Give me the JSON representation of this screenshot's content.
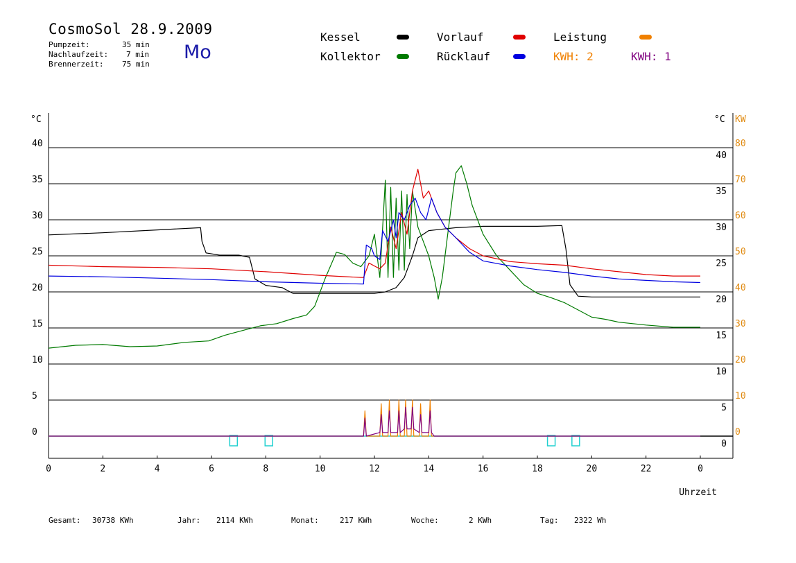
{
  "header": {
    "title": "CosmoSol 28.9.2009",
    "weekday": "Mo",
    "pump_label": "Pumpzeit:",
    "pump_value": "35 min",
    "after_label": "Nachlaufzeit:",
    "after_value": "7 min",
    "burner_label": "Brennerzeit:",
    "burner_value": "75 min"
  },
  "legend": {
    "kessel": "Kessel",
    "kollektor": "Kollektor",
    "vorlauf": "Vorlauf",
    "ruecklauf": "Rücklauf",
    "leistung": "Leistung",
    "kwh_a": "KWH: 2",
    "kwh_b": "KWH: 1"
  },
  "colors": {
    "kessel": "#000000",
    "kollektor": "#007a00",
    "vorlauf": "#e00000",
    "ruecklauf": "#0000e0",
    "leistung": "#f08000",
    "kwh_b": "#800080",
    "base": "#20d0d0"
  },
  "axes": {
    "left_unit": "°C",
    "right_unit": "°C",
    "right2_unit": "KW",
    "x_label": "Uhrzeit"
  },
  "footer": {
    "gesamt_label": "Gesamt:",
    "gesamt_value": "30738 KWh",
    "jahr_label": "Jahr:",
    "jahr_value": "2114 KWh",
    "monat_label": "Monat:",
    "monat_value": "217 KWh",
    "woche_label": "Woche:",
    "woche_value": "2 KWh",
    "tag_label": "Tag:",
    "tag_value": "2322 Wh"
  },
  "chart_data": {
    "type": "line",
    "title": "CosmoSol 28.9.2009",
    "xlabel": "Uhrzeit",
    "ylabel": "°C",
    "xlim": [
      0,
      24
    ],
    "ylim": [
      0,
      45
    ],
    "y2lim": [
      0,
      90
    ],
    "grid": true,
    "x_ticks": [
      "0",
      "2",
      "4",
      "6",
      "8",
      "10",
      "12",
      "14",
      "16",
      "18",
      "20",
      "22",
      "0"
    ],
    "y_ticks": [
      "0",
      "5",
      "10",
      "15",
      "20",
      "25",
      "30",
      "35",
      "40"
    ],
    "y2_ticks": [
      "0",
      "10",
      "20",
      "30",
      "40",
      "50",
      "60",
      "70",
      "80"
    ],
    "series": [
      {
        "name": "Kessel",
        "color": "#000000",
        "points": [
          [
            0,
            27.9
          ],
          [
            2,
            28.2
          ],
          [
            4,
            28.6
          ],
          [
            5.6,
            28.9
          ],
          [
            5.65,
            27
          ],
          [
            5.8,
            25.4
          ],
          [
            6.3,
            25.1
          ],
          [
            7,
            25.1
          ],
          [
            7.4,
            24.8
          ],
          [
            7.6,
            21.8
          ],
          [
            8,
            20.9
          ],
          [
            8.6,
            20.6
          ],
          [
            9,
            19.8
          ],
          [
            10,
            19.8
          ],
          [
            11,
            19.8
          ],
          [
            11.6,
            19.8
          ],
          [
            12,
            19.8
          ],
          [
            12.4,
            20
          ],
          [
            12.8,
            20.6
          ],
          [
            13.1,
            22
          ],
          [
            13.4,
            25
          ],
          [
            13.6,
            27.5
          ],
          [
            14,
            28.5
          ],
          [
            15,
            28.9
          ],
          [
            16,
            29.1
          ],
          [
            17,
            29.1
          ],
          [
            18,
            29.1
          ],
          [
            18.9,
            29.2
          ],
          [
            19.05,
            26
          ],
          [
            19.2,
            21
          ],
          [
            19.5,
            19.4
          ],
          [
            20,
            19.3
          ],
          [
            22,
            19.3
          ],
          [
            24,
            19.3
          ]
        ]
      },
      {
        "name": "Kollektor",
        "color": "#007a00",
        "points": [
          [
            0,
            12.2
          ],
          [
            1,
            12.6
          ],
          [
            2,
            12.7
          ],
          [
            3,
            12.4
          ],
          [
            4,
            12.5
          ],
          [
            5,
            13
          ],
          [
            5.9,
            13.2
          ],
          [
            6.5,
            14
          ],
          [
            7,
            14.5
          ],
          [
            7.8,
            15.3
          ],
          [
            8.4,
            15.6
          ],
          [
            9,
            16.3
          ],
          [
            9.5,
            16.8
          ],
          [
            9.8,
            18
          ],
          [
            10.2,
            22
          ],
          [
            10.6,
            25.5
          ],
          [
            10.9,
            25.2
          ],
          [
            11.2,
            24
          ],
          [
            11.5,
            23.5
          ],
          [
            11.8,
            25
          ],
          [
            12,
            28
          ],
          [
            12.2,
            22
          ],
          [
            12.4,
            35.5
          ],
          [
            12.5,
            22
          ],
          [
            12.6,
            34.5
          ],
          [
            12.7,
            22
          ],
          [
            12.8,
            33
          ],
          [
            12.9,
            23
          ],
          [
            13,
            34
          ],
          [
            13.1,
            23
          ],
          [
            13.2,
            33.5
          ],
          [
            13.3,
            26
          ],
          [
            13.4,
            34
          ],
          [
            13.6,
            29
          ],
          [
            13.8,
            27
          ],
          [
            14,
            25
          ],
          [
            14.2,
            22
          ],
          [
            14.35,
            19
          ],
          [
            14.5,
            22
          ],
          [
            14.7,
            28
          ],
          [
            14.9,
            34
          ],
          [
            15,
            36.5
          ],
          [
            15.2,
            37.5
          ],
          [
            15.4,
            35
          ],
          [
            15.6,
            32
          ],
          [
            15.8,
            30
          ],
          [
            16,
            28
          ],
          [
            16.5,
            25
          ],
          [
            17,
            23
          ],
          [
            17.5,
            21
          ],
          [
            18,
            19.8
          ],
          [
            18.5,
            19.2
          ],
          [
            19,
            18.5
          ],
          [
            19.5,
            17.5
          ],
          [
            20,
            16.5
          ],
          [
            20.5,
            16.2
          ],
          [
            21,
            15.8
          ],
          [
            22,
            15.4
          ],
          [
            23,
            15.1
          ],
          [
            24,
            15.1
          ]
        ]
      },
      {
        "name": "Vorlauf",
        "color": "#e00000",
        "points": [
          [
            0,
            23.7
          ],
          [
            2,
            23.5
          ],
          [
            4,
            23.4
          ],
          [
            6,
            23.2
          ],
          [
            8,
            22.8
          ],
          [
            10,
            22.3
          ],
          [
            11.5,
            22
          ],
          [
            11.6,
            22
          ],
          [
            11.8,
            24
          ],
          [
            12,
            23.6
          ],
          [
            12.2,
            23.2
          ],
          [
            12.4,
            24
          ],
          [
            12.6,
            29
          ],
          [
            12.8,
            26
          ],
          [
            13,
            31
          ],
          [
            13.2,
            28
          ],
          [
            13.4,
            34
          ],
          [
            13.6,
            37
          ],
          [
            13.8,
            33
          ],
          [
            14,
            34
          ],
          [
            14.3,
            31
          ],
          [
            14.6,
            29
          ],
          [
            15,
            27.5
          ],
          [
            15.5,
            26
          ],
          [
            16,
            25
          ],
          [
            17,
            24.2
          ],
          [
            18,
            23.9
          ],
          [
            19,
            23.7
          ],
          [
            20,
            23.2
          ],
          [
            21,
            22.8
          ],
          [
            22,
            22.4
          ],
          [
            23,
            22.2
          ],
          [
            24,
            22.2
          ]
        ]
      },
      {
        "name": "Rücklauf",
        "color": "#0000e0",
        "points": [
          [
            0,
            22.2
          ],
          [
            2,
            22.1
          ],
          [
            4,
            21.9
          ],
          [
            6,
            21.7
          ],
          [
            8,
            21.4
          ],
          [
            10,
            21.2
          ],
          [
            11.6,
            21.1
          ],
          [
            11.7,
            26.5
          ],
          [
            11.9,
            26
          ],
          [
            12,
            25
          ],
          [
            12.2,
            24.5
          ],
          [
            12.3,
            28.5
          ],
          [
            12.5,
            27
          ],
          [
            12.7,
            30
          ],
          [
            12.8,
            27.5
          ],
          [
            12.9,
            31
          ],
          [
            13.1,
            30
          ],
          [
            13.3,
            32
          ],
          [
            13.5,
            33
          ],
          [
            13.7,
            31
          ],
          [
            13.9,
            30
          ],
          [
            14.1,
            33
          ],
          [
            14.3,
            31
          ],
          [
            14.6,
            29
          ],
          [
            15,
            27.5
          ],
          [
            15.5,
            25.5
          ],
          [
            16,
            24.3
          ],
          [
            17,
            23.6
          ],
          [
            18,
            23.1
          ],
          [
            19,
            22.7
          ],
          [
            20,
            22.2
          ],
          [
            21,
            21.8
          ],
          [
            22,
            21.6
          ],
          [
            23,
            21.4
          ],
          [
            24,
            21.3
          ]
        ]
      },
      {
        "name": "Leistung",
        "color": "#f08000",
        "axis": "y2",
        "points": [
          [
            0,
            0
          ],
          [
            11.6,
            0
          ],
          [
            11.65,
            7
          ],
          [
            11.7,
            0
          ],
          [
            12.2,
            0
          ],
          [
            12.25,
            9
          ],
          [
            12.3,
            0
          ],
          [
            12.5,
            0
          ],
          [
            12.55,
            10
          ],
          [
            12.6,
            0
          ],
          [
            12.85,
            0
          ],
          [
            12.9,
            10
          ],
          [
            12.95,
            0
          ],
          [
            13.1,
            0
          ],
          [
            13.15,
            10
          ],
          [
            13.2,
            0
          ],
          [
            13.35,
            0
          ],
          [
            13.4,
            10
          ],
          [
            13.45,
            0
          ],
          [
            13.65,
            0
          ],
          [
            13.7,
            9
          ],
          [
            13.75,
            0
          ],
          [
            14.0,
            0
          ],
          [
            14.05,
            10
          ],
          [
            14.1,
            0
          ],
          [
            24,
            0
          ]
        ]
      },
      {
        "name": "KWH: 1",
        "color": "#800080",
        "axis": "y2",
        "points": [
          [
            0,
            0
          ],
          [
            11.6,
            0
          ],
          [
            11.65,
            5
          ],
          [
            11.7,
            0
          ],
          [
            12.2,
            1
          ],
          [
            12.25,
            6
          ],
          [
            12.3,
            1
          ],
          [
            12.5,
            1
          ],
          [
            12.55,
            7
          ],
          [
            12.6,
            1
          ],
          [
            12.85,
            1
          ],
          [
            12.9,
            7
          ],
          [
            12.95,
            1
          ],
          [
            13.1,
            2
          ],
          [
            13.15,
            8
          ],
          [
            13.2,
            2
          ],
          [
            13.35,
            2
          ],
          [
            13.4,
            8
          ],
          [
            13.45,
            2
          ],
          [
            13.65,
            1
          ],
          [
            13.7,
            6
          ],
          [
            13.75,
            1
          ],
          [
            14.0,
            1
          ],
          [
            14.05,
            7
          ],
          [
            14.1,
            1
          ],
          [
            14.2,
            0
          ],
          [
            24,
            0
          ]
        ]
      }
    ],
    "markers": [
      6.8,
      8.1,
      18.5,
      19.4
    ]
  }
}
